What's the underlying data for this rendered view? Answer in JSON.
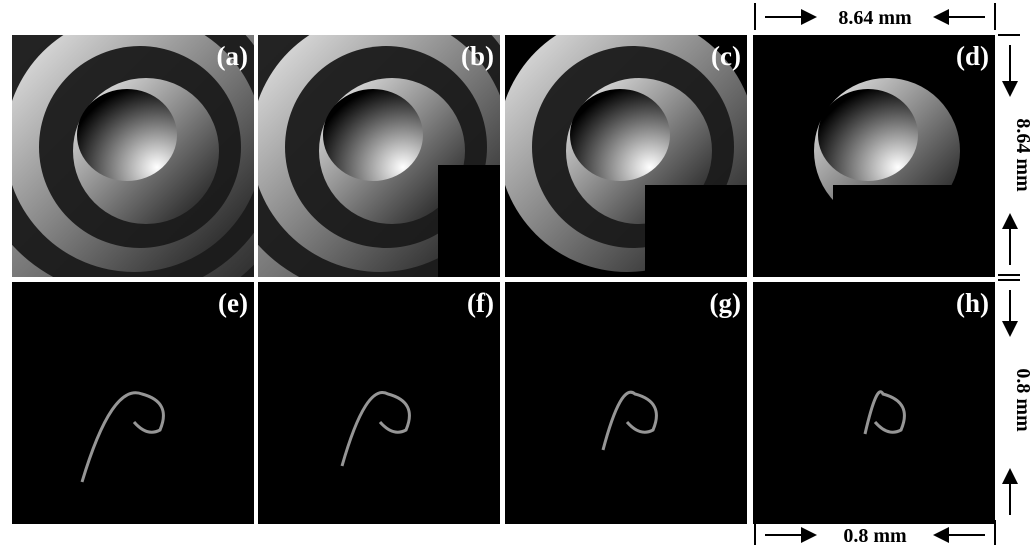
{
  "panels": [
    {
      "label": "(a)"
    },
    {
      "label": "(b)"
    },
    {
      "label": "(c)"
    },
    {
      "label": "(d)"
    },
    {
      "label": "(e)"
    },
    {
      "label": "(f)"
    },
    {
      "label": "(g)"
    },
    {
      "label": "(h)"
    }
  ],
  "scale_bars": {
    "top": "8.64 mm",
    "right_top": "8.64 mm",
    "right_bottom": "0.8 mm",
    "bottom": "0.8 mm"
  }
}
